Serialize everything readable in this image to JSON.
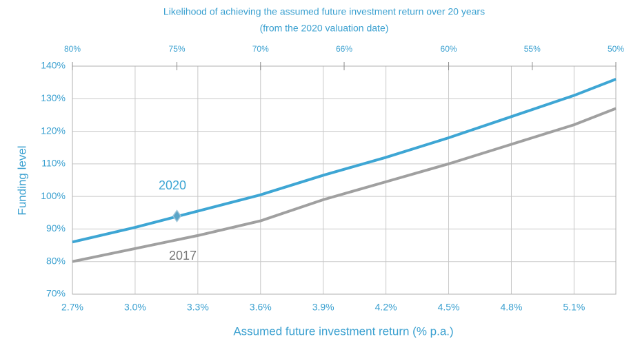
{
  "chart_data": {
    "type": "line",
    "title": "Likelihood of achieving the assumed future investment return over 20 years",
    "subtitle": "(from the 2020 valuation date)",
    "x_label": "Assumed future investment return (% p.a.)",
    "y_label": "Funding level",
    "x": [
      2.7,
      3.0,
      3.3,
      3.6,
      3.9,
      4.2,
      4.5,
      4.8,
      5.1,
      5.3
    ],
    "series": [
      {
        "name": "2020",
        "color": "#3ea6d4",
        "values": [
          86,
          90.5,
          95.5,
          100.5,
          106.5,
          112,
          118,
          124.5,
          131,
          136
        ]
      },
      {
        "name": "2017",
        "color": "#a0a0a0",
        "values": [
          80,
          84,
          88,
          92.5,
          99,
          104.5,
          110,
          116,
          122,
          127
        ]
      }
    ],
    "marker": {
      "x": 3.2,
      "y": 94,
      "color": "#5aa5c8"
    },
    "xlim": [
      2.7,
      5.3
    ],
    "ylim": [
      70,
      140
    ],
    "xticks": [
      {
        "value": 2.7,
        "label": "2.7%"
      },
      {
        "value": 3.0,
        "label": "3.0%"
      },
      {
        "value": 3.3,
        "label": "3.3%"
      },
      {
        "value": 3.6,
        "label": "3.6%"
      },
      {
        "value": 3.9,
        "label": "3.9%"
      },
      {
        "value": 4.2,
        "label": "4.2%"
      },
      {
        "value": 4.5,
        "label": "4.5%"
      },
      {
        "value": 4.8,
        "label": "4.8%"
      },
      {
        "value": 5.1,
        "label": "5.1%"
      }
    ],
    "yticks": [
      {
        "value": 70,
        "label": "70%"
      },
      {
        "value": 80,
        "label": "80%"
      },
      {
        "value": 90,
        "label": "90%"
      },
      {
        "value": 100,
        "label": "100%"
      },
      {
        "value": 110,
        "label": "110%"
      },
      {
        "value": 120,
        "label": "120%"
      },
      {
        "value": 130,
        "label": "130%"
      },
      {
        "value": 140,
        "label": "140%"
      }
    ],
    "top_ticks": [
      {
        "value": 2.7,
        "label": "80%"
      },
      {
        "value": 3.2,
        "label": "75%"
      },
      {
        "value": 3.6,
        "label": "70%"
      },
      {
        "value": 4.0,
        "label": "66%"
      },
      {
        "value": 4.5,
        "label": "60%"
      },
      {
        "value": 4.9,
        "label": "55%"
      },
      {
        "value": 5.3,
        "label": "50%"
      }
    ],
    "grid": true
  }
}
